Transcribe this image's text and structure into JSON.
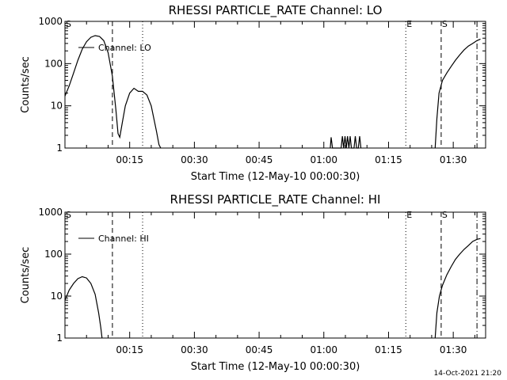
{
  "chart_data": [
    {
      "type": "line",
      "title": "RHESSI PARTICLE_RATE Channel: LO",
      "xlabel": "Start Time (12-May-10 00:00:30)",
      "ylabel": "Counts/sec",
      "yscale": "log",
      "ylim": [
        1,
        1000
      ],
      "xlim_minutes": [
        0,
        97.5
      ],
      "x_tick_minutes": [
        15,
        30,
        45,
        60,
        75,
        90
      ],
      "x_tick_labels": [
        "00:15",
        "00:30",
        "00:45",
        "01:00",
        "01:15",
        "01:30"
      ],
      "y_ticks": [
        1,
        10,
        100,
        1000
      ],
      "y_tick_labels": [
        "1",
        "10",
        "100",
        "1000"
      ],
      "legend": "Channel: LO",
      "series": [
        {
          "name": "Channel: LO",
          "segments": [
            [
              [
                0,
                17
              ],
              [
                1,
                30
              ],
              [
                2,
                60
              ],
              [
                3,
                120
              ],
              [
                4,
                220
              ],
              [
                5,
                330
              ],
              [
                6,
                420
              ],
              [
                7,
                460
              ],
              [
                8,
                440
              ],
              [
                9,
                350
              ],
              [
                10,
                180
              ],
              [
                11,
                50
              ],
              [
                11.8,
                8
              ],
              [
                12.3,
                2.2
              ],
              [
                12.7,
                1.8
              ],
              [
                13.3,
                4
              ],
              [
                14,
                10
              ],
              [
                15,
                20
              ],
              [
                16,
                26
              ],
              [
                17,
                22
              ],
              [
                18,
                22
              ],
              [
                19,
                18
              ],
              [
                20,
                10
              ],
              [
                20.6,
                5
              ],
              [
                21.2,
                2.5
              ],
              [
                21.8,
                1.2
              ],
              [
                22.2,
                1
              ]
            ],
            [
              [
                61.5,
                1
              ],
              [
                61.7,
                1.8
              ],
              [
                62,
                1
              ],
              [
                64,
                1
              ],
              [
                64.3,
                1.9
              ],
              [
                64.6,
                1
              ],
              [
                64.9,
                1.9
              ],
              [
                65.2,
                1
              ],
              [
                65.5,
                1.9
              ],
              [
                65.8,
                1
              ],
              [
                66.1,
                1.9
              ],
              [
                66.4,
                1
              ],
              [
                67,
                1
              ],
              [
                67.3,
                1.9
              ],
              [
                67.6,
                1
              ],
              [
                68,
                1
              ],
              [
                68.3,
                1.9
              ],
              [
                68.6,
                1
              ]
            ],
            [
              [
                85.8,
                1
              ],
              [
                86.2,
                5
              ],
              [
                86.7,
                20
              ],
              [
                87.5,
                40
              ],
              [
                88.5,
                60
              ],
              [
                89.5,
                85
              ],
              [
                90.5,
                120
              ],
              [
                91.5,
                160
              ],
              [
                92.5,
                210
              ],
              [
                93.5,
                260
              ],
              [
                94.5,
                300
              ],
              [
                95.5,
                350
              ],
              [
                96.3,
                380
              ]
            ]
          ]
        }
      ],
      "markers": [
        {
          "label": "S",
          "minute": 0,
          "style": "dotted"
        },
        {
          "label": "",
          "minute": 11,
          "style": "dashed"
        },
        {
          "label": "",
          "minute": 18,
          "style": "dotted"
        },
        {
          "label": "E",
          "minute": 79,
          "style": "dotted"
        },
        {
          "label": "S",
          "minute": 87.2,
          "style": "dashed"
        },
        {
          "label": "",
          "minute": 95.5,
          "style": "dashdot"
        }
      ]
    },
    {
      "type": "line",
      "title": "RHESSI PARTICLE_RATE Channel: HI",
      "xlabel": "Start Time (12-May-10 00:00:30)",
      "ylabel": "Counts/sec",
      "yscale": "log",
      "ylim": [
        1,
        1000
      ],
      "xlim_minutes": [
        0,
        97.5
      ],
      "x_tick_minutes": [
        15,
        30,
        45,
        60,
        75,
        90
      ],
      "x_tick_labels": [
        "00:15",
        "00:30",
        "00:45",
        "01:00",
        "01:15",
        "01:30"
      ],
      "y_ticks": [
        1,
        10,
        100,
        1000
      ],
      "y_tick_labels": [
        "1",
        "10",
        "100",
        "1000"
      ],
      "legend": "Channel: HI",
      "series": [
        {
          "name": "Channel: HI",
          "segments": [
            [
              [
                0,
                8
              ],
              [
                1,
                14
              ],
              [
                2,
                20
              ],
              [
                3,
                26
              ],
              [
                4,
                29
              ],
              [
                5,
                27
              ],
              [
                6,
                20
              ],
              [
                7,
                11
              ],
              [
                7.8,
                4
              ],
              [
                8.3,
                1.8
              ],
              [
                8.6,
                1
              ]
            ],
            [
              [
                85.8,
                1
              ],
              [
                86.2,
                4
              ],
              [
                86.8,
                10
              ],
              [
                87.5,
                18
              ],
              [
                88.5,
                32
              ],
              [
                89.5,
                50
              ],
              [
                90.5,
                75
              ],
              [
                91.5,
                100
              ],
              [
                92.5,
                130
              ],
              [
                93.5,
                160
              ],
              [
                94.5,
                200
              ],
              [
                95.5,
                225
              ],
              [
                96.3,
                235
              ]
            ]
          ]
        }
      ],
      "markers": [
        {
          "label": "S",
          "minute": 0,
          "style": "dotted"
        },
        {
          "label": "",
          "minute": 11,
          "style": "dashed"
        },
        {
          "label": "",
          "minute": 18,
          "style": "dotted"
        },
        {
          "label": "E",
          "minute": 79,
          "style": "dotted"
        },
        {
          "label": "S",
          "minute": 87.2,
          "style": "dashed"
        },
        {
          "label": "",
          "minute": 95.5,
          "style": "dashdot"
        }
      ]
    }
  ],
  "footer": {
    "timestamp": "14-Oct-2021 21:20"
  }
}
